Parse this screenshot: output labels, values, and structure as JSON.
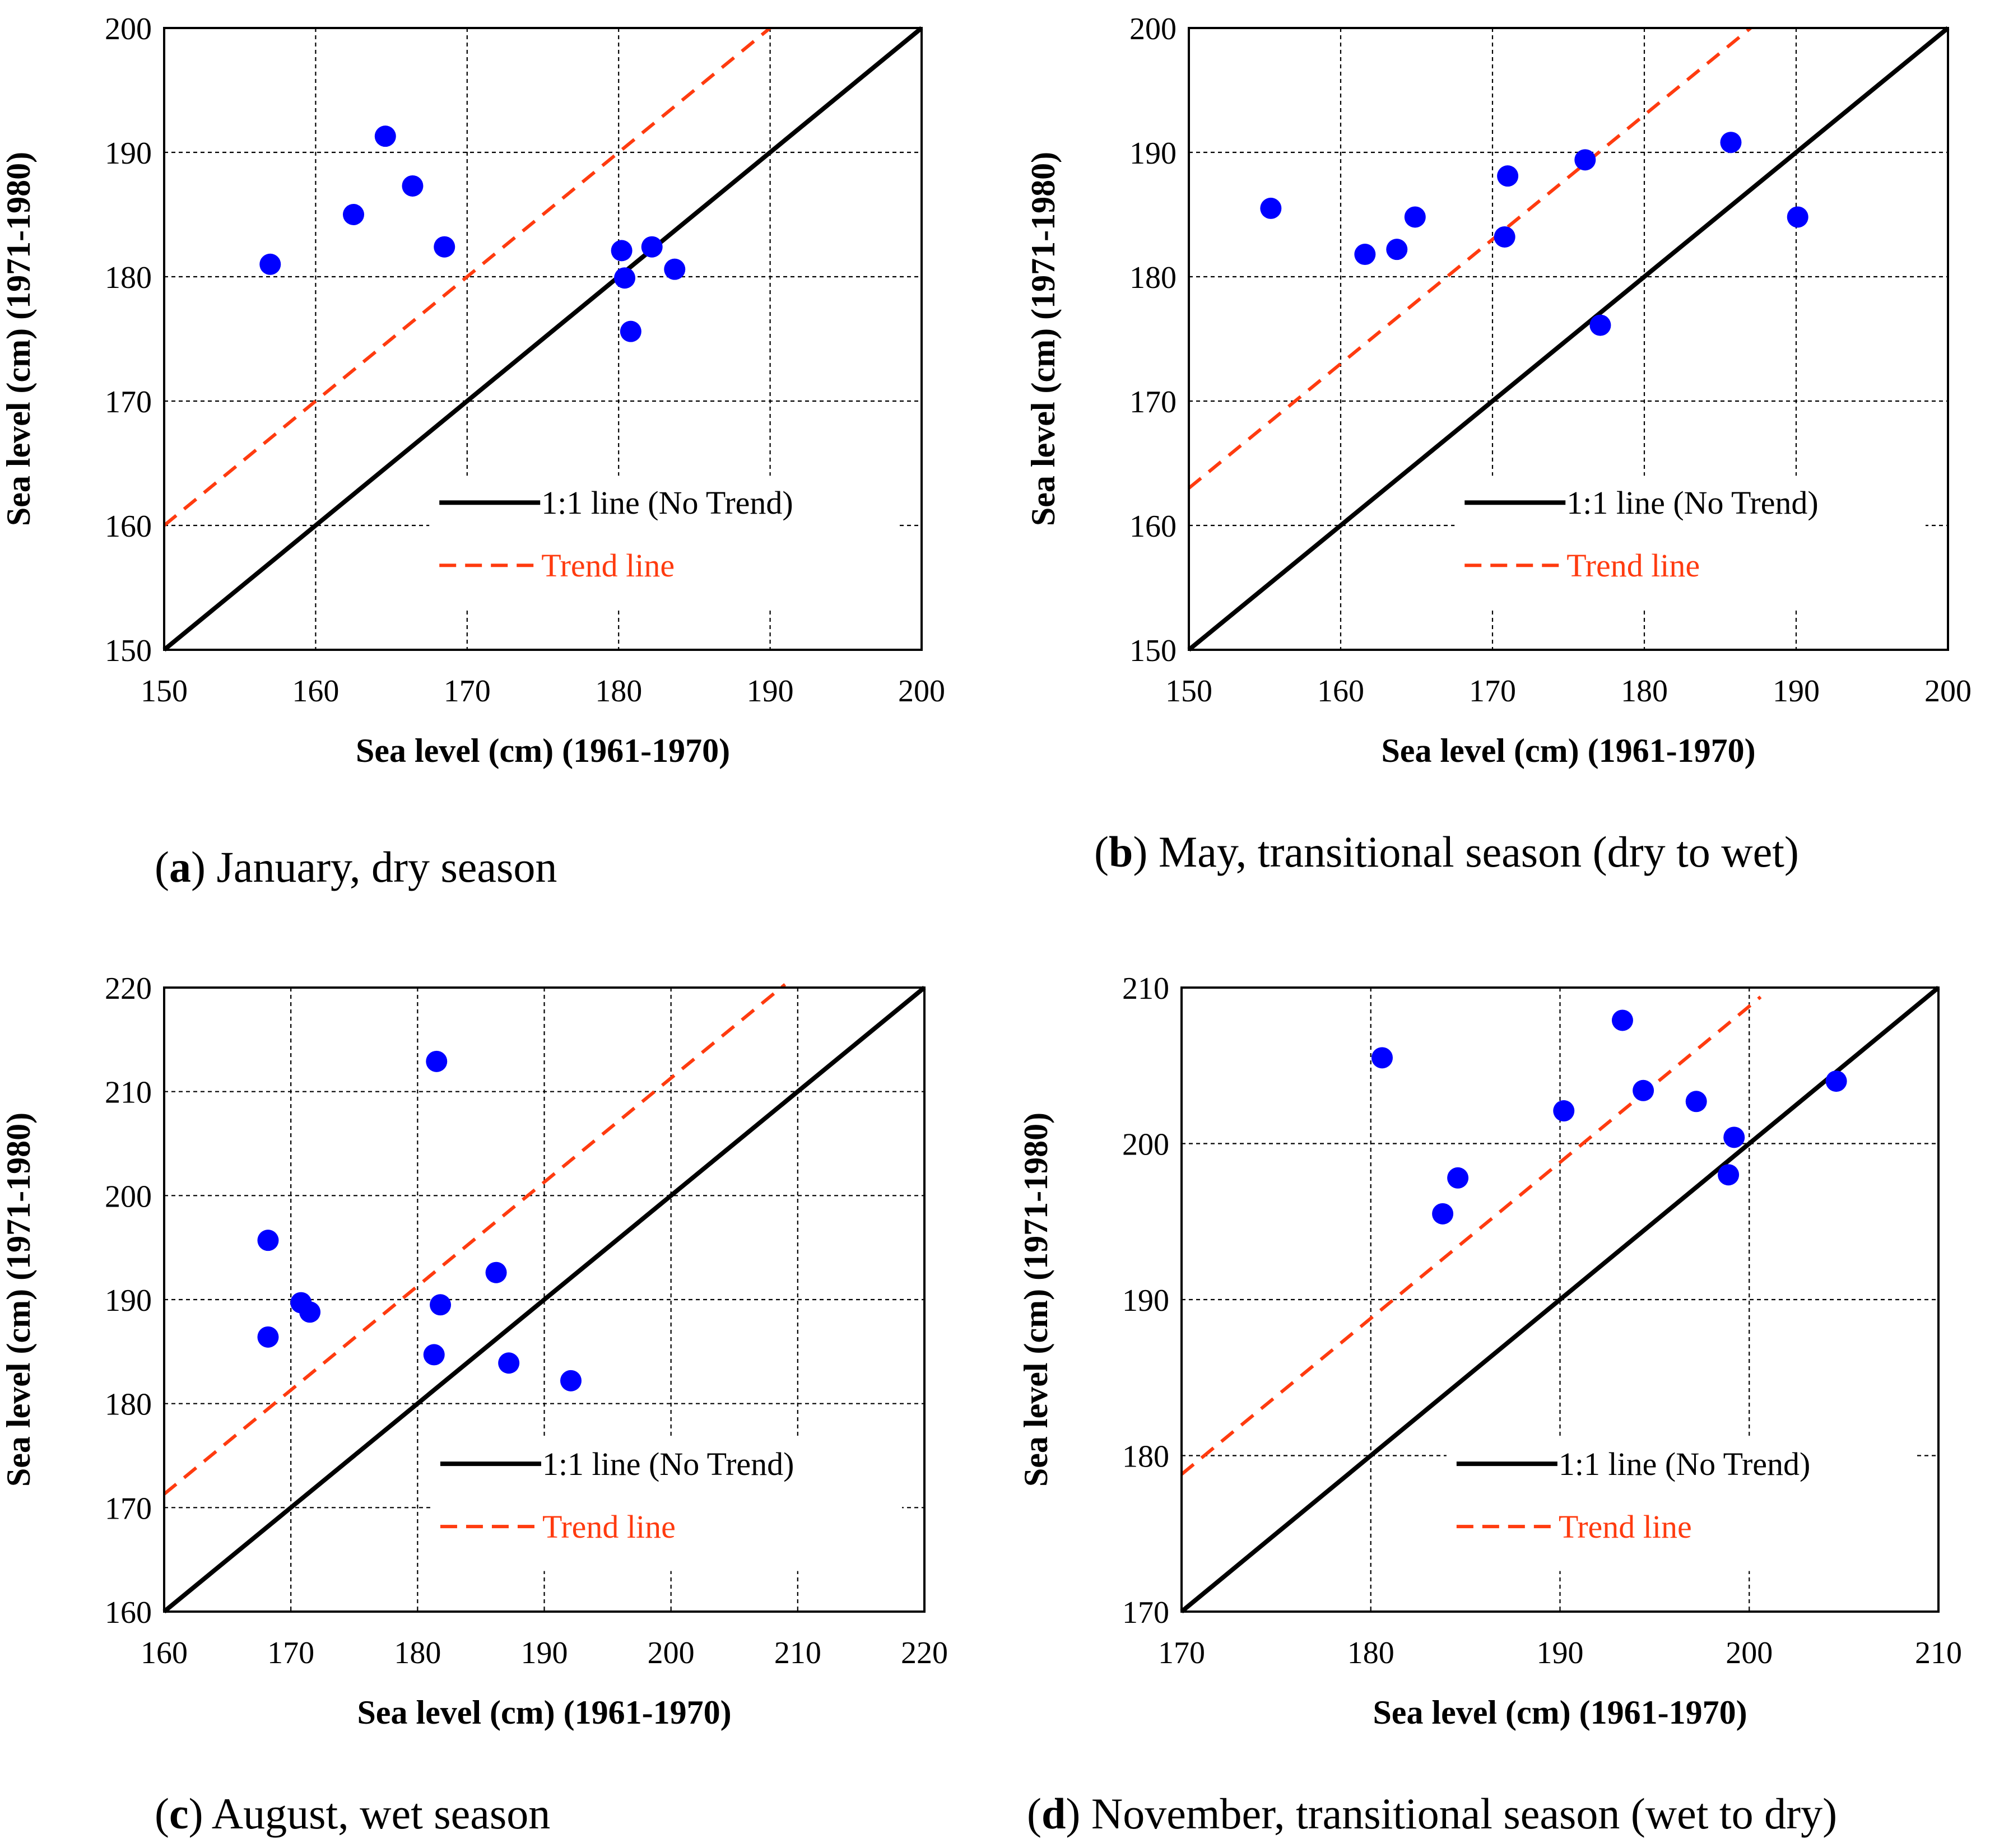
{
  "colors": {
    "points": "#0000ff",
    "one_to_one": "#000000",
    "trend": "#ff3b0f",
    "grid": "#000000"
  },
  "captions": [
    {
      "letter": "a",
      "text": "January, dry season"
    },
    {
      "letter": "b",
      "text": "May, transitional season (dry to wet)"
    },
    {
      "letter": "c",
      "text": "August, wet season"
    },
    {
      "letter": "d",
      "text": "November, transitional season (wet to dry)"
    }
  ],
  "chart_data": [
    {
      "type": "scatter",
      "caption": "(a) January, dry season",
      "xlabel": "Sea level (cm) (1961-1970)",
      "ylabel": "Sea level (cm) (1971-1980)",
      "xlim": [
        150,
        200
      ],
      "ylim": [
        150,
        200
      ],
      "xticks": [
        150,
        160,
        170,
        180,
        190,
        200
      ],
      "yticks": [
        150,
        160,
        170,
        180,
        190,
        200
      ],
      "grid": true,
      "legend": {
        "position": "bottom-right",
        "entries": [
          "1:1 line (No Trend)",
          "Trend line"
        ]
      },
      "one_to_one": [
        [
          150,
          150
        ],
        [
          200,
          200
        ]
      ],
      "trend_line": [
        [
          150,
          160
        ],
        [
          190,
          200
        ]
      ],
      "points": [
        [
          157,
          181
        ],
        [
          162.5,
          185
        ],
        [
          164.6,
          191.3
        ],
        [
          166.4,
          187.3
        ],
        [
          168.5,
          182.4
        ],
        [
          180.2,
          182.1
        ],
        [
          180.4,
          179.9
        ],
        [
          180.8,
          175.6
        ],
        [
          182.2,
          182.4
        ],
        [
          183.7,
          180.6
        ]
      ]
    },
    {
      "type": "scatter",
      "caption": "(b) May, transitional season (dry to wet)",
      "xlabel": "Sea level (cm) (1961-1970)",
      "ylabel": "Sea level (cm) (1971-1980)",
      "xlim": [
        150,
        200
      ],
      "ylim": [
        150,
        200
      ],
      "xticks": [
        150,
        160,
        170,
        180,
        190,
        200
      ],
      "yticks": [
        150,
        160,
        170,
        180,
        190,
        200
      ],
      "grid": true,
      "legend": {
        "position": "bottom-right",
        "entries": [
          "1:1 line (No Trend)",
          "Trend line"
        ]
      },
      "one_to_one": [
        [
          150,
          150
        ],
        [
          200,
          200
        ]
      ],
      "trend_line": [
        [
          150,
          163
        ],
        [
          187,
          200
        ]
      ],
      "points": [
        [
          155.4,
          185.5
        ],
        [
          161.6,
          181.8
        ],
        [
          163.7,
          182.2
        ],
        [
          164.9,
          184.8
        ],
        [
          170.8,
          183.2
        ],
        [
          171,
          188.1
        ],
        [
          176.1,
          189.4
        ],
        [
          177.1,
          176.1
        ],
        [
          185.7,
          190.8
        ],
        [
          190.1,
          184.8
        ]
      ]
    },
    {
      "type": "scatter",
      "caption": "(c) August, wet season",
      "xlabel": "Sea level (cm) (1961-1970)",
      "ylabel": "Sea level (cm) (1971-1980)",
      "xlim": [
        160,
        220
      ],
      "ylim": [
        160,
        220
      ],
      "xticks": [
        160,
        170,
        180,
        190,
        200,
        210,
        220
      ],
      "yticks": [
        160,
        170,
        180,
        190,
        200,
        210,
        220
      ],
      "grid": true,
      "legend": {
        "position": "bottom-right",
        "entries": [
          "1:1 line (No Trend)",
          "Trend line"
        ]
      },
      "one_to_one": [
        [
          160,
          160
        ],
        [
          220,
          220
        ]
      ],
      "trend_line": [
        [
          160,
          171.3
        ],
        [
          209,
          220.3
        ]
      ],
      "points": [
        [
          168.2,
          195.7
        ],
        [
          168.2,
          186.4
        ],
        [
          170.8,
          189.7
        ],
        [
          171.5,
          188.8
        ],
        [
          181.3,
          184.7
        ],
        [
          181.5,
          212.9
        ],
        [
          181.8,
          189.5
        ],
        [
          186.2,
          192.6
        ],
        [
          187.2,
          183.9
        ],
        [
          192.1,
          182.2
        ]
      ]
    },
    {
      "type": "scatter",
      "caption": "(d) November, transitional season (wet to dry)",
      "xlabel": "Sea level (cm) (1961-1970)",
      "ylabel": "Sea level (cm) (1971-1980)",
      "xlim": [
        170,
        210
      ],
      "ylim": [
        170,
        210
      ],
      "xticks": [
        170,
        180,
        190,
        200,
        210
      ],
      "yticks": [
        170,
        180,
        190,
        200,
        210
      ],
      "grid": true,
      "legend": {
        "position": "bottom-right",
        "entries": [
          "1:1 line (No Trend)",
          "Trend line"
        ]
      },
      "one_to_one": [
        [
          170,
          170
        ],
        [
          210,
          210
        ]
      ],
      "trend_line": [
        [
          170,
          178.8
        ],
        [
          200.6,
          209.4
        ]
      ],
      "points": [
        [
          180.6,
          205.5
        ],
        [
          183.8,
          195.5
        ],
        [
          184.6,
          197.8
        ],
        [
          190.2,
          202.1
        ],
        [
          193.3,
          207.9
        ],
        [
          194.4,
          203.4
        ],
        [
          197.2,
          202.7
        ],
        [
          198.9,
          198
        ],
        [
          199.2,
          200.4
        ],
        [
          204.6,
          204
        ]
      ]
    }
  ]
}
